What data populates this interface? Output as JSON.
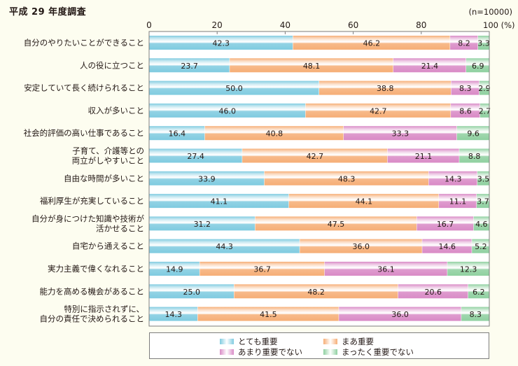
{
  "chart_data": {
    "type": "bar",
    "orientation": "horizontal",
    "stacked": true,
    "title": "平成 29 年度調査",
    "sample_note": "(n=10000)",
    "x_unit_label": "(%)",
    "xlim": [
      0,
      100
    ],
    "x_ticks": [
      "0",
      "20",
      "40",
      "60",
      "80",
      "100"
    ],
    "x_tick_values": [
      0,
      20,
      40,
      60,
      80,
      100
    ],
    "grid": false,
    "legend_position": "bottom",
    "categories": [
      "自分のやりたいことができること",
      "人の役に立つこと",
      "安定していて長く続けられること",
      "収入が多いこと",
      "社会的評価の高い仕事であること",
      "子育て、介護等との\n両立がしやすいこと",
      "自由な時間が多いこと",
      "福利厚生が充実していること",
      "自分が身につけた知識や技術が\n活かせること",
      "自宅から通えること",
      "実力主義で偉くなれること",
      "能力を高める機会があること",
      "特別に指示されずに、\n自分の責任で決められること"
    ],
    "series": [
      {
        "name": "とても重要",
        "color": "#7fcbe0",
        "values": [
          42.3,
          23.7,
          50.0,
          46.0,
          16.4,
          27.4,
          33.9,
          41.1,
          31.2,
          44.3,
          14.9,
          25.0,
          14.3
        ]
      },
      {
        "name": "まあ重要",
        "color": "#f6ae76",
        "values": [
          46.2,
          48.1,
          38.8,
          42.7,
          40.8,
          42.7,
          48.3,
          44.1,
          47.5,
          36.0,
          36.7,
          48.2,
          41.5
        ]
      },
      {
        "name": "あまり重要でない",
        "color": "#d98ac6",
        "values": [
          8.2,
          21.4,
          8.3,
          8.6,
          33.3,
          21.1,
          14.3,
          11.1,
          16.7,
          14.6,
          36.1,
          20.6,
          36.0
        ]
      },
      {
        "name": "まったく重要でない",
        "color": "#8fd0a0",
        "values": [
          3.3,
          6.9,
          2.9,
          2.7,
          9.6,
          8.8,
          3.5,
          3.7,
          4.6,
          5.2,
          12.3,
          6.2,
          8.3
        ]
      }
    ]
  }
}
